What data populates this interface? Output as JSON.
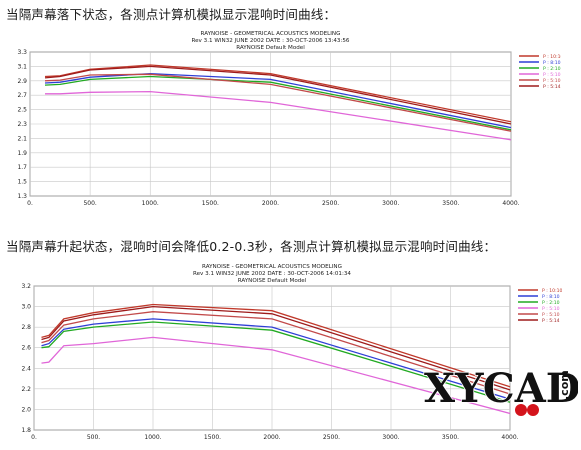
{
  "captions": {
    "top": "当隔声幕落下状态，各测点计算机模拟显示混响时间曲线：",
    "bottom": "当隔声幕升起状态，混响时间会降低0.2-0.3秒，各测点计算机模拟显示混响时间曲线："
  },
  "logo": {
    "text": "XYCAD",
    "suffix": ".com"
  },
  "chart_data": [
    {
      "type": "line",
      "header": [
        "RAYNOISE - GEOMETRICAL ACOUSTICS MODELING",
        "Rev 3.1  WIN32  JUNE 2002   DATE : 30-OCT-2006 13:43:56",
        "RAYNOISE Default Model"
      ],
      "xlim": [
        0,
        4000
      ],
      "ylim": [
        1.3,
        3.3
      ],
      "xticks": [
        0,
        500,
        1000,
        1500,
        2000,
        2500,
        3000,
        3500,
        4000
      ],
      "xtick_labels": [
        "0.",
        "500.",
        "1000.",
        "1500.",
        "2000.",
        "2500.",
        "3000.",
        "3500.",
        "4000."
      ],
      "yticks": [
        1.3,
        1.5,
        1.7,
        1.9,
        2.1,
        2.3,
        2.5,
        2.7,
        2.9,
        3.1,
        3.3
      ],
      "ytick_labels": [
        "1.3",
        "1.5",
        "1.7",
        "1.9",
        "2.1",
        "2.3",
        "2.5",
        "2.7",
        "2.9",
        "3.1",
        "3.3"
      ],
      "grid": true,
      "legend_position": "right",
      "x": [
        125,
        250,
        500,
        1000,
        2000,
        4000
      ],
      "series": [
        {
          "name": "P : 10:10",
          "color": "#c0392b",
          "values": [
            2.96,
            2.97,
            3.06,
            3.12,
            3.0,
            2.33
          ]
        },
        {
          "name": "P : 8:10",
          "color": "#2f3fd6",
          "values": [
            2.87,
            2.88,
            2.95,
            3.0,
            2.92,
            2.25
          ]
        },
        {
          "name": "P : 2:10",
          "color": "#22aa22",
          "values": [
            2.84,
            2.85,
            2.92,
            2.96,
            2.88,
            2.22
          ]
        },
        {
          "name": "P : 5:10",
          "color": "#e066d8",
          "values": [
            2.72,
            2.72,
            2.74,
            2.75,
            2.6,
            2.08
          ]
        },
        {
          "name": "P : 5:10",
          "color": "#c24a4a",
          "values": [
            2.9,
            2.91,
            2.98,
            2.99,
            2.85,
            2.2
          ]
        },
        {
          "name": "P : 5:14",
          "color": "#9e1b1b",
          "values": [
            2.94,
            2.96,
            3.05,
            3.1,
            2.98,
            2.3
          ]
        }
      ]
    },
    {
      "type": "line",
      "header": [
        "RAYNOISE - GEOMETRICAL ACOUSTICS MODELING",
        "Rev 3.1  WIN32  JUNE 2002   DATE : 30-OCT-2006 14:01:34",
        "RAYNOISE Default Model"
      ],
      "xlim": [
        0,
        4000
      ],
      "ylim": [
        1.8,
        3.2
      ],
      "xticks": [
        0,
        500,
        1000,
        1500,
        2000,
        2500,
        3000,
        3500,
        4000
      ],
      "xtick_labels": [
        "0.",
        "500.",
        "1000.",
        "1500.",
        "2000.",
        "2500.",
        "3000.",
        "3500.",
        "4000."
      ],
      "yticks": [
        1.8,
        2.0,
        2.2,
        2.4,
        2.6,
        2.8,
        3.0,
        3.2
      ],
      "ytick_labels": [
        "1.8",
        "2.0",
        "2.2",
        "2.4",
        "2.6",
        "2.8",
        "3.0",
        "3.2"
      ],
      "grid": true,
      "legend_position": "right",
      "x": [
        63,
        125,
        250,
        500,
        1000,
        2000,
        4000
      ],
      "series": [
        {
          "name": "P : 10:10",
          "color": "#c0392b",
          "values": [
            2.7,
            2.72,
            2.88,
            2.94,
            3.02,
            2.96,
            2.22
          ]
        },
        {
          "name": "P : 8:10",
          "color": "#2f3fd6",
          "values": [
            2.62,
            2.64,
            2.78,
            2.83,
            2.88,
            2.8,
            2.1
          ]
        },
        {
          "name": "P : 2:10",
          "color": "#22aa22",
          "values": [
            2.6,
            2.61,
            2.76,
            2.8,
            2.85,
            2.77,
            2.07
          ]
        },
        {
          "name": "P : 5:10",
          "color": "#e066d8",
          "values": [
            2.45,
            2.46,
            2.62,
            2.64,
            2.7,
            2.58,
            1.96
          ]
        },
        {
          "name": "P : 5:10",
          "color": "#c24a4a",
          "values": [
            2.65,
            2.67,
            2.82,
            2.88,
            2.95,
            2.88,
            2.15
          ]
        },
        {
          "name": "P : 5:14",
          "color": "#9e1b1b",
          "values": [
            2.68,
            2.7,
            2.86,
            2.92,
            3.0,
            2.93,
            2.19
          ]
        }
      ]
    }
  ]
}
